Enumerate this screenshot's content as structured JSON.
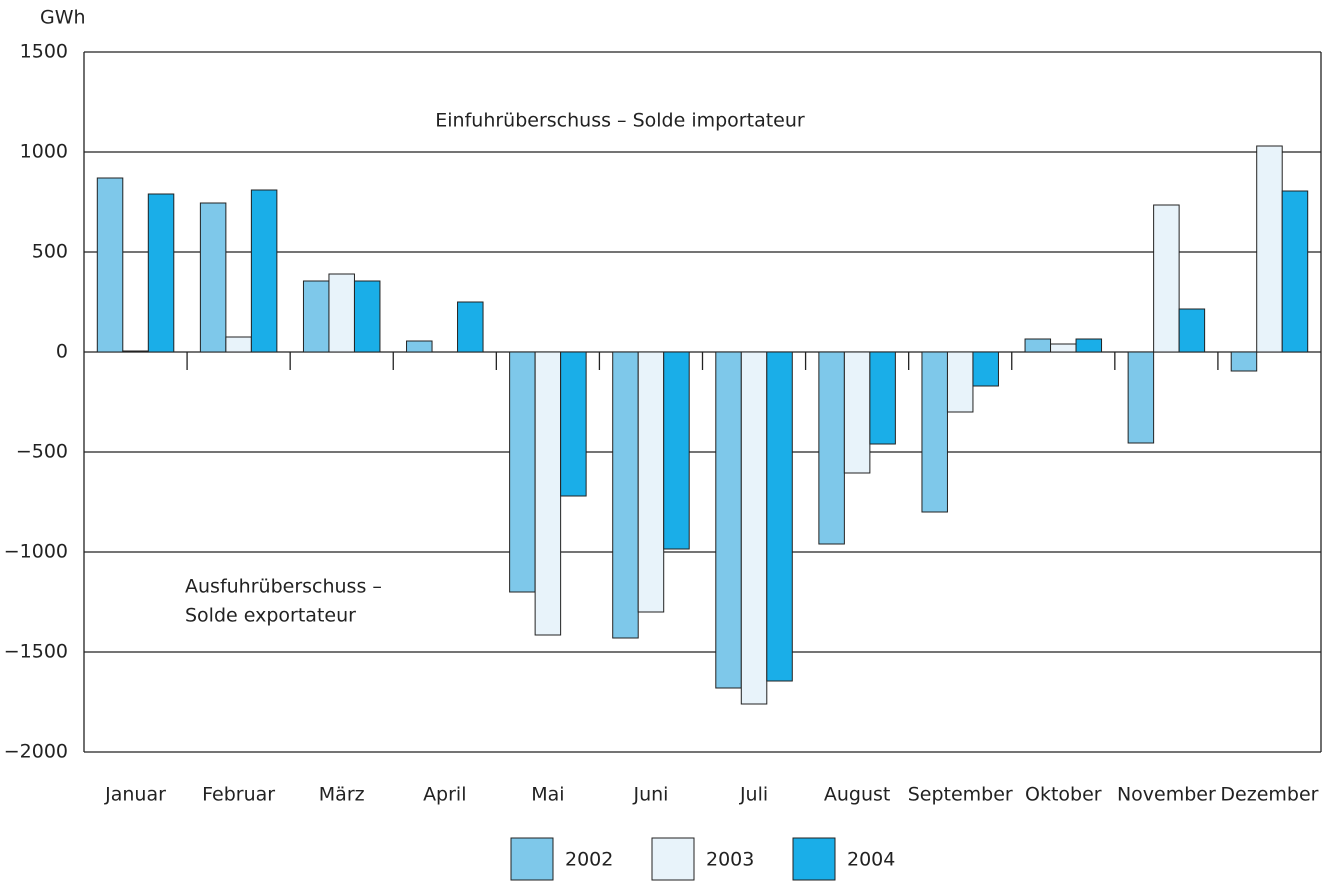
{
  "chart_data": {
    "type": "bar",
    "y_label": "GWh",
    "annotations": [
      "Einfuhrüberschuss – Solde importateur",
      "Ausfuhrüberschuss –",
      "Solde exportateur"
    ],
    "categories": [
      "Januar",
      "Februar",
      "März",
      "April",
      "Mai",
      "Juni",
      "Juli",
      "August",
      "September",
      "Oktober",
      "November",
      "Dezember"
    ],
    "series": [
      {
        "name": "2002",
        "color": "#7ec8ea",
        "values": [
          870,
          745,
          355,
          55,
          -1200,
          -1430,
          -1680,
          -960,
          -800,
          65,
          -455,
          -95
        ]
      },
      {
        "name": "2003",
        "color": "#e8f3fa",
        "values": [
          5,
          75,
          390,
          0,
          -1415,
          -1300,
          -1760,
          -605,
          -300,
          40,
          735,
          1030
        ]
      },
      {
        "name": "2004",
        "color": "#1aaee8",
        "values": [
          790,
          810,
          355,
          250,
          -720,
          -985,
          -1645,
          -460,
          -170,
          65,
          215,
          805
        ]
      }
    ],
    "ylim": [
      -2000,
      1500
    ],
    "yticks": [
      {
        "value": -2000,
        "label": "−2000"
      },
      {
        "value": -1500,
        "label": "−1500"
      },
      {
        "value": -1000,
        "label": "−1000"
      },
      {
        "value": -500,
        "label": "−500"
      },
      0,
      500,
      1000,
      1500
    ],
    "grid": true,
    "legend": "bottom"
  }
}
